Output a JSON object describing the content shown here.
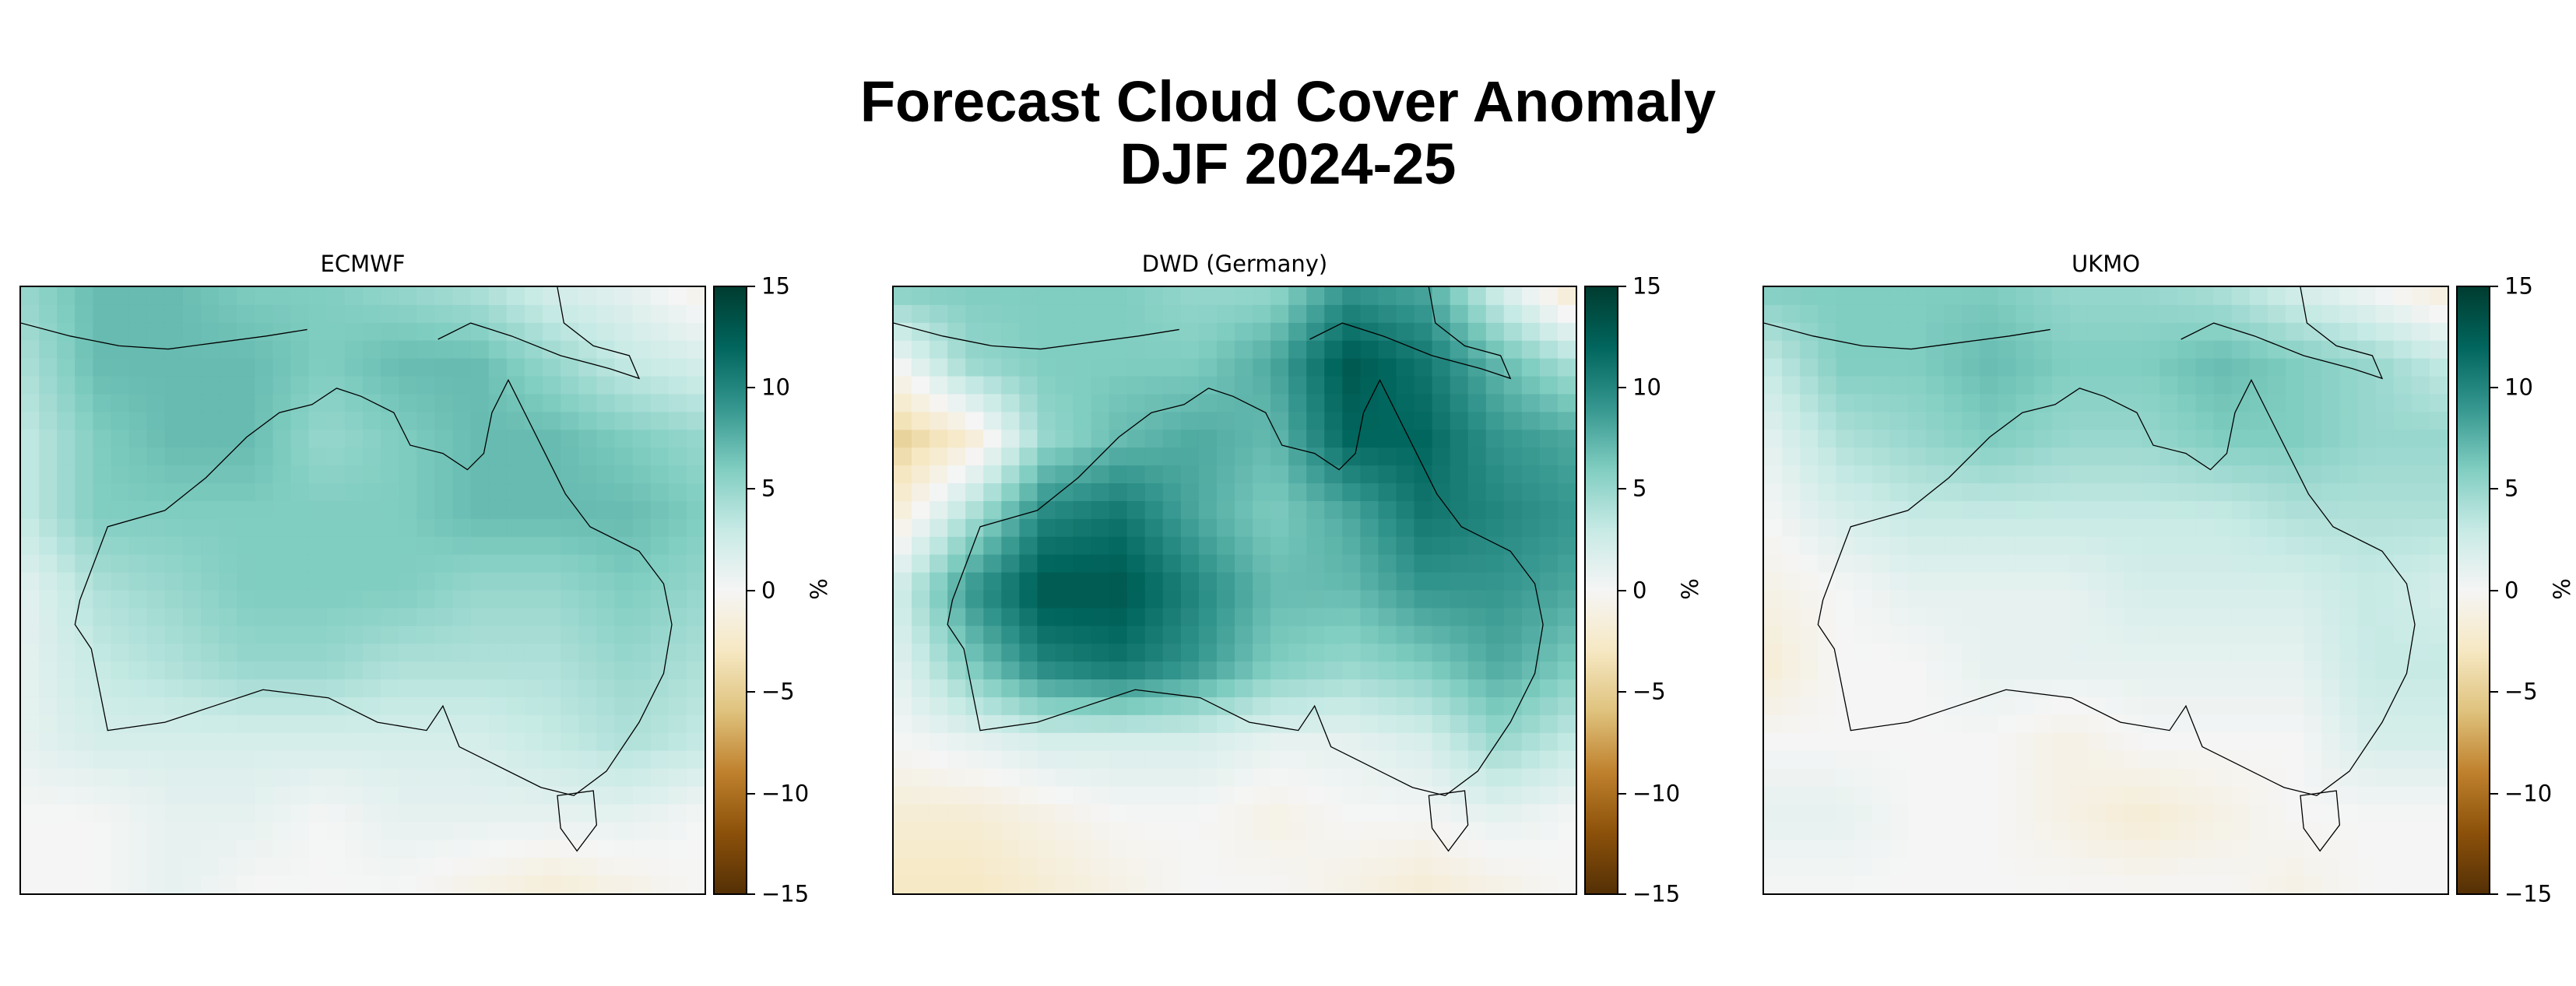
{
  "title_line1": "Forecast Cloud Cover Anomaly",
  "title_line2": "DJF 2024-25",
  "chart_data": {
    "type": "heatmap",
    "title": "Forecast Cloud Cover Anomaly DJF 2024-25",
    "colormap": "BrBG",
    "colorbar": {
      "label": "%",
      "range": [
        -15,
        15
      ],
      "ticks": [
        -15,
        -10,
        -5,
        0,
        5,
        10,
        15
      ],
      "tick_labels": [
        "−15",
        "−10",
        "−5",
        "0",
        "5",
        "10",
        "15"
      ]
    },
    "colors": [
      "#543005",
      "#8c510a",
      "#bf812d",
      "#dfc27d",
      "#f6e8c3",
      "#f5f5f5",
      "#c7eae5",
      "#80cdc1",
      "#35978f",
      "#01665e",
      "#003c30"
    ],
    "region": "Australia",
    "panels": [
      {
        "name": "ECMWF",
        "grid_anomaly_pct": [
          [
            5,
            7,
            7,
            6,
            6,
            5,
            4,
            2,
            1,
            -1
          ],
          [
            4,
            7,
            7,
            7,
            6,
            7,
            7,
            5,
            3,
            2
          ],
          [
            3,
            6,
            7,
            7,
            5,
            6,
            7,
            7,
            6,
            5
          ],
          [
            3,
            6,
            6,
            6,
            6,
            6,
            7,
            7,
            7,
            6
          ],
          [
            1,
            4,
            5,
            6,
            6,
            6,
            5,
            5,
            6,
            5
          ],
          [
            1,
            3,
            4,
            5,
            5,
            4,
            4,
            4,
            5,
            4
          ],
          [
            1,
            2,
            2,
            2,
            2,
            2,
            2,
            3,
            4,
            3
          ],
          [
            0,
            0,
            1,
            1,
            0,
            1,
            1,
            1,
            1,
            0
          ],
          [
            0,
            0,
            1,
            0,
            0,
            0,
            -1,
            -2,
            -1,
            0
          ]
        ]
      },
      {
        "name": "DWD (Germany)",
        "grid_anomaly_pct": [
          [
            6,
            6,
            6,
            6,
            5,
            5,
            9,
            8,
            2,
            -3
          ],
          [
            0,
            5,
            6,
            6,
            6,
            8,
            13,
            11,
            7,
            4
          ],
          [
            -5,
            -2,
            5,
            7,
            8,
            7,
            12,
            12,
            9,
            8
          ],
          [
            -2,
            4,
            10,
            11,
            8,
            6,
            8,
            11,
            10,
            9
          ],
          [
            2,
            9,
            13,
            13,
            10,
            7,
            7,
            9,
            9,
            8
          ],
          [
            1,
            6,
            10,
            11,
            9,
            6,
            5,
            6,
            8,
            6
          ],
          [
            0,
            1,
            2,
            2,
            2,
            1,
            1,
            2,
            5,
            3
          ],
          [
            -2,
            -2,
            -1,
            0,
            0,
            -1,
            0,
            0,
            1,
            0
          ],
          [
            -3,
            -3,
            -2,
            -1,
            0,
            0,
            -1,
            -2,
            -1,
            0
          ]
        ]
      },
      {
        "name": "UKMO",
        "grid_anomaly_pct": [
          [
            6,
            6,
            6,
            6,
            5,
            5,
            4,
            2,
            0,
            -2
          ],
          [
            3,
            6,
            6,
            7,
            6,
            6,
            7,
            6,
            5,
            3
          ],
          [
            1,
            4,
            5,
            6,
            5,
            5,
            6,
            6,
            5,
            5
          ],
          [
            0,
            2,
            3,
            3,
            3,
            3,
            3,
            4,
            4,
            4
          ],
          [
            -1,
            0,
            1,
            1,
            1,
            2,
            2,
            2,
            3,
            2
          ],
          [
            -2,
            0,
            0,
            1,
            1,
            1,
            1,
            1,
            3,
            3
          ],
          [
            0,
            0,
            0,
            0,
            -1,
            0,
            0,
            0,
            2,
            2
          ],
          [
            1,
            1,
            0,
            0,
            -1,
            -2,
            -1,
            0,
            0,
            0
          ],
          [
            0,
            0,
            0,
            0,
            0,
            0,
            0,
            -1,
            0,
            0
          ]
        ]
      }
    ]
  }
}
